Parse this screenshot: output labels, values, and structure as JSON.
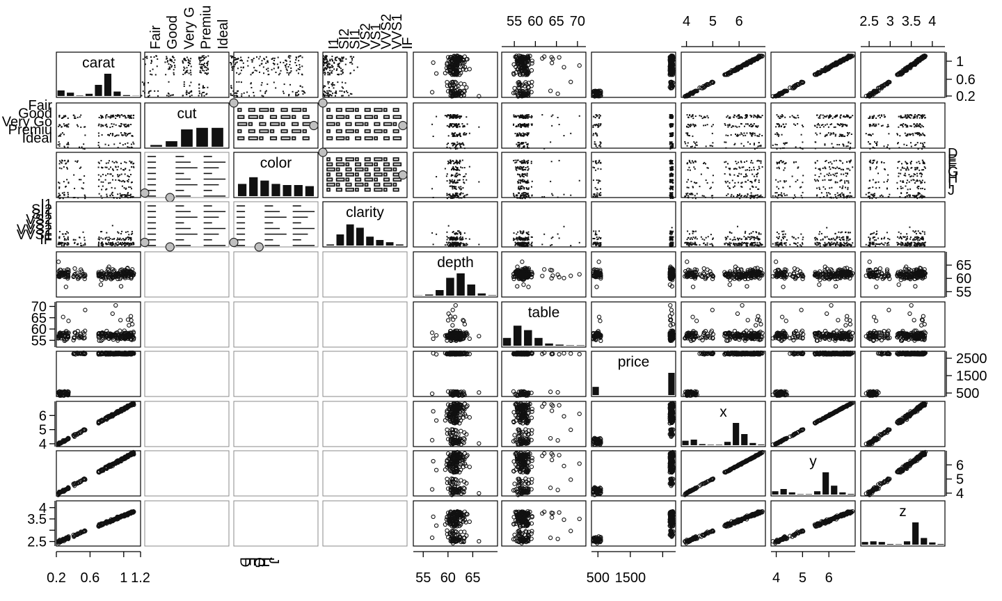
{
  "chart_data": {
    "type": "scatter",
    "kind": "scatterplot-matrix",
    "title": "",
    "variables": [
      {
        "name": "carat",
        "kind": "numeric",
        "range": [
          0.2,
          1.2
        ],
        "ticks": [
          0.2,
          0.6,
          1,
          1.2
        ],
        "tick_labels": [
          "0.2",
          "0.6",
          "1",
          "1.2"
        ],
        "hist": [
          0.25,
          0.15,
          0.02,
          0.1,
          0.5,
          1.0,
          0.2,
          0.04,
          0.01
        ]
      },
      {
        "name": "cut",
        "kind": "factor",
        "levels": [
          "Fair",
          "Good",
          "Very Good",
          "Premium",
          "Ideal"
        ],
        "tick_labels": [
          "Fair",
          "Good",
          "Very Go",
          "Premiu",
          "Ideal"
        ],
        "top_tick_labels": [
          "Fair",
          "Good",
          "Very G",
          "Premiu",
          "Ideal"
        ],
        "hist": [
          0.08,
          0.25,
          0.78,
          0.85,
          0.85
        ]
      },
      {
        "name": "color",
        "kind": "factor",
        "levels": [
          "D",
          "E",
          "F",
          "G",
          "H",
          "I",
          "J"
        ],
        "tick_labels": [
          "D",
          "E",
          "F",
          "G",
          "H",
          "I",
          "J"
        ],
        "hist": [
          0.55,
          0.85,
          0.7,
          0.55,
          0.5,
          0.5,
          0.45
        ]
      },
      {
        "name": "clarity",
        "kind": "factor",
        "levels": [
          "I1",
          "SI2",
          "SI1",
          "VS2",
          "VS1",
          "VVS2",
          "VVS1",
          "IF"
        ],
        "tick_labels": [
          "I1",
          "SI2",
          "SI1",
          "VS2",
          "VS1",
          "VVS2",
          "VVS1",
          "IF"
        ],
        "hist": [
          0.05,
          0.5,
          0.95,
          0.8,
          0.4,
          0.25,
          0.15,
          0.05
        ]
      },
      {
        "name": "depth",
        "kind": "numeric",
        "range": [
          53,
          70
        ],
        "ticks": [
          55,
          60,
          65
        ],
        "tick_labels": [
          "55",
          "60",
          "65"
        ],
        "hist": [
          0.01,
          0.05,
          0.25,
          0.8,
          1.0,
          0.5,
          0.1,
          0.02
        ]
      },
      {
        "name": "table",
        "kind": "numeric",
        "range": [
          52,
          72
        ],
        "ticks": [
          55,
          60,
          65,
          70
        ],
        "tick_labels": [
          "55",
          "60",
          "65",
          "70"
        ],
        "hist": [
          0.35,
          0.9,
          0.7,
          0.35,
          0.1,
          0.05,
          0.02,
          0.02
        ]
      },
      {
        "name": "price",
        "kind": "numeric",
        "range": [
          300,
          2900
        ],
        "ticks": [
          500,
          1500,
          2500
        ],
        "tick_labels": [
          "500",
          "1500",
          "2500"
        ],
        "hist": [
          0.37,
          0,
          0,
          0,
          0,
          0,
          0,
          0,
          0,
          1.0
        ]
      },
      {
        "name": "x",
        "kind": "numeric",
        "range": [
          3.8,
          7.0
        ],
        "ticks": [
          4,
          5,
          6
        ],
        "tick_labels": [
          "4",
          "5",
          "6"
        ],
        "hist": [
          0.2,
          0.25,
          0.05,
          0.02,
          0.02,
          0.15,
          1.0,
          0.5,
          0.1,
          0.03
        ]
      },
      {
        "name": "y",
        "kind": "numeric",
        "range": [
          3.8,
          7.0
        ],
        "ticks": [
          4,
          5,
          6
        ],
        "tick_labels": [
          "4",
          "5",
          "6"
        ],
        "hist": [
          0.15,
          0.25,
          0.1,
          0.02,
          0.02,
          0.15,
          1.0,
          0.4,
          0.1,
          0.03
        ]
      },
      {
        "name": "z",
        "kind": "numeric",
        "range": [
          2.3,
          4.3
        ],
        "ticks": [
          2.5,
          3,
          3.5,
          4
        ],
        "tick_labels": [
          "2.5",
          "3",
          "3.5",
          "4"
        ],
        "hist": [
          0.12,
          0.15,
          0.12,
          0.03,
          0.02,
          0.15,
          1.0,
          0.3,
          0.1,
          0.03
        ]
      }
    ],
    "axis_labels": {
      "bottom": [
        {
          "var": 0,
          "labels": [
            "0.2",
            "0.6",
            "1",
            "1.2"
          ],
          "text": "0.2   0.6   11.2"
        },
        {
          "var": 2,
          "labels": [
            "D",
            "E",
            "F",
            "G",
            "H",
            "I",
            "J"
          ]
        },
        {
          "var": 4,
          "labels": [
            "55",
            "60",
            "65"
          ]
        },
        {
          "var": 6,
          "labels": [
            "500",
            "1500"
          ]
        },
        {
          "var": 8,
          "labels": [
            "4",
            "5",
            "6"
          ]
        }
      ],
      "top": [
        {
          "var": 1
        },
        {
          "var": 3
        },
        {
          "var": 5
        },
        {
          "var": 7
        },
        {
          "var": 9
        }
      ],
      "left": [
        {
          "var": 1
        },
        {
          "var": 3
        },
        {
          "var": 5
        },
        {
          "var": 7
        },
        {
          "var": 9
        }
      ],
      "right": [
        {
          "var": 0,
          "labels": [
            "0.2",
            "0.6",
            "1"
          ]
        },
        {
          "var": 2
        },
        {
          "var": 4,
          "labels": [
            "55",
            "60",
            "65"
          ]
        },
        {
          "var": 6,
          "labels": [
            "500",
            "1500",
            "2500"
          ]
        },
        {
          "var": 8,
          "labels": [
            "4",
            "5",
            "6"
          ]
        }
      ]
    },
    "relations": {
      "carat_x_slope": "strong positive",
      "price_groups": [
        500,
        2800
      ],
      "lower_left_factor_panels": "empty"
    },
    "sample_size": 200,
    "legend": "none",
    "grid": false
  }
}
